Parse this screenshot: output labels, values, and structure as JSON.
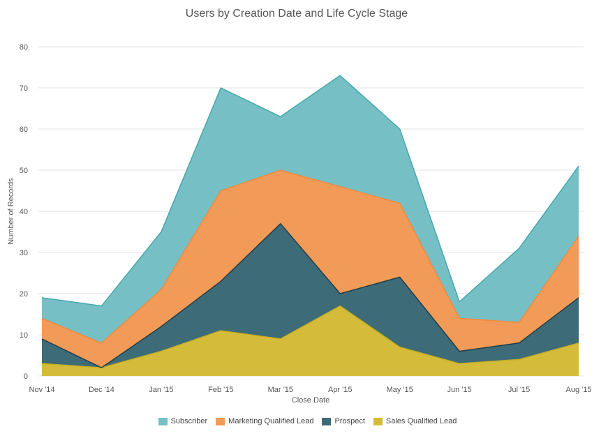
{
  "chart_data": {
    "type": "area",
    "stacked": true,
    "title": "Users by Creation Date and Life Cycle Stage",
    "xlabel": "Close Date",
    "ylabel": "Number of Records",
    "ylim": [
      0,
      80
    ],
    "yticks": [
      0,
      10,
      20,
      30,
      40,
      50,
      60,
      70,
      80
    ],
    "grid": true,
    "legend_position": "bottom",
    "categories": [
      "Nov '14",
      "Dec '14",
      "Jan '15",
      "Feb '15",
      "Mar '15",
      "Apr '15",
      "May '15",
      "Jun '15",
      "Jul '15",
      "Aug '15"
    ],
    "series": [
      {
        "name": "Sales Qualified Lead",
        "color": "#d4bc3a",
        "line_color": "#c7ad20",
        "values": [
          3,
          2,
          6,
          11,
          9,
          17,
          7,
          3,
          4,
          8
        ]
      },
      {
        "name": "Prospect",
        "color": "#3d6b78",
        "line_color": "#1f3f4a",
        "values": [
          6,
          0,
          6,
          12,
          28,
          3,
          17,
          3,
          4,
          11
        ]
      },
      {
        "name": "Marketing Qualified Lead",
        "color": "#f29a57",
        "line_color": "#ee8a40",
        "values": [
          5,
          6,
          9,
          22,
          13,
          26,
          18,
          8,
          5,
          15
        ]
      },
      {
        "name": "Subscriber",
        "color": "#76c0c5",
        "line_color": "#45a6ad",
        "values": [
          5,
          9,
          14,
          25,
          13,
          27,
          18,
          4,
          18,
          17
        ]
      }
    ],
    "legend_order": [
      "Subscriber",
      "Marketing Qualified Lead",
      "Prospect",
      "Sales Qualified Lead"
    ]
  }
}
